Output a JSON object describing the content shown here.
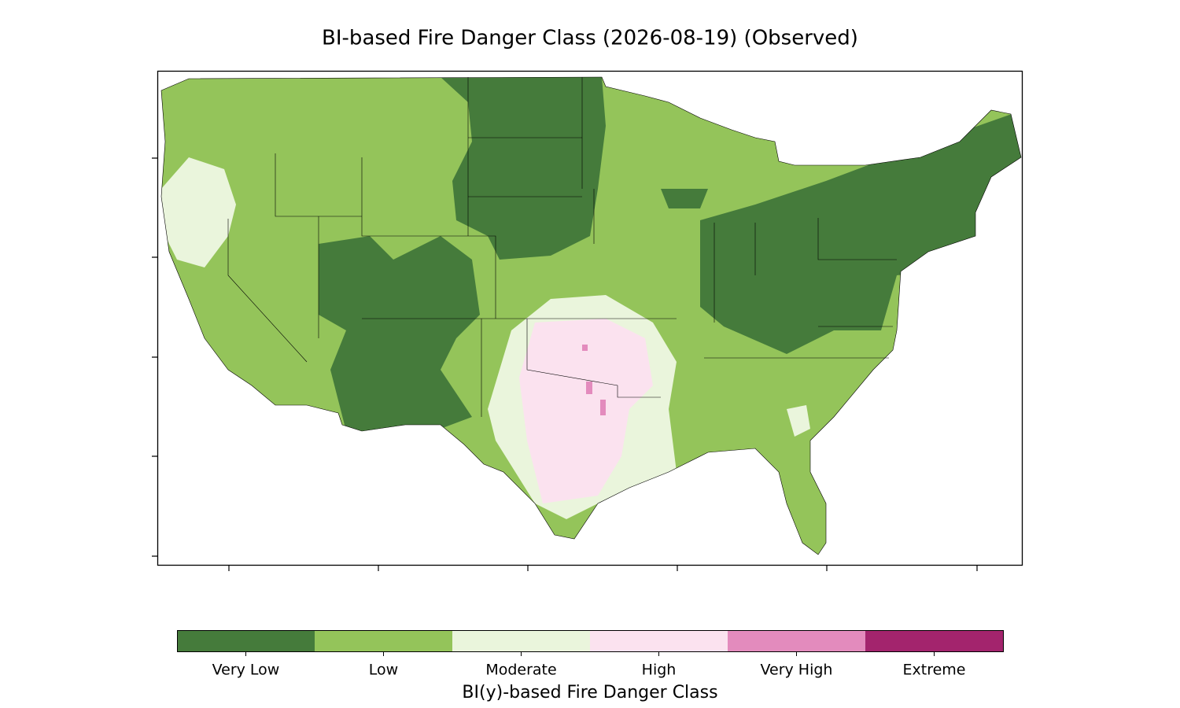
{
  "title": "BI-based Fire Danger Class (2026-08-19) (Observed)",
  "colorbar": {
    "label": "BI(y)-based Fire Danger Class",
    "classes": [
      {
        "name": "Very Low",
        "color": "#457b3b"
      },
      {
        "name": "Low",
        "color": "#94c45a"
      },
      {
        "name": "Moderate",
        "color": "#eaf5dc"
      },
      {
        "name": "High",
        "color": "#fbe2ef"
      },
      {
        "name": "Very High",
        "color": "#e38bbd"
      },
      {
        "name": "Extreme",
        "color": "#a3246d"
      }
    ]
  }
}
